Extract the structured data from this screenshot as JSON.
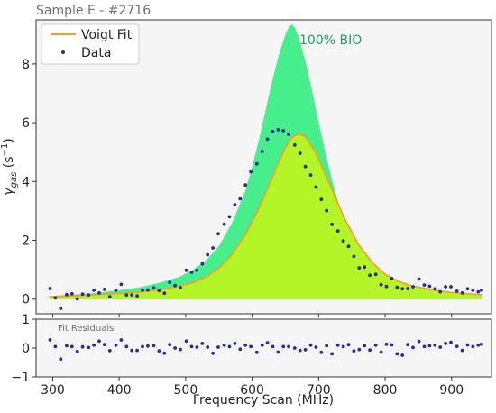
{
  "chart_data": {
    "type": "line",
    "title": "Sample E - #2716",
    "xlabel": "Frequency Scan (MHz)",
    "ylabel_main": "γ",
    "ylabel_sub": "gas",
    "ylabel_unit_open": " (s",
    "ylabel_unit_exp": "−1",
    "ylabel_unit_close": ")",
    "xlim": [
      275,
      960
    ],
    "main_ylim": [
      -0.5,
      9.5
    ],
    "resid_ylim": [
      -1,
      1
    ],
    "xticks": [
      300,
      400,
      500,
      600,
      700,
      800,
      900
    ],
    "main_yticks": [
      0,
      2,
      4,
      6,
      8
    ],
    "resid_yticks": [
      -1,
      0,
      1
    ],
    "grid": false,
    "legend_position": "top-left",
    "annotation": {
      "text": "100% BIO",
      "x": 668,
      "y": 9.0
    },
    "resid_label": "Fit Residuals",
    "colors": {
      "bio_fill": "#46ef8c",
      "fit_fill": "#b4f527",
      "fit_line": "#ff9a1a",
      "data": "#2a2a9a",
      "annotation": "#1fa060",
      "plot_bg": "#f5f5f5"
    },
    "series": [
      {
        "name": "Voigt Fit",
        "type": "line",
        "x": [
          295,
          330,
          360,
          400,
          430,
          460,
          490,
          510,
          530,
          550,
          570,
          590,
          605,
          620,
          635,
          650,
          660,
          670,
          680,
          695,
          710,
          725,
          740,
          760,
          780,
          800,
          820,
          840,
          870,
          900,
          945
        ],
        "y": [
          0.08,
          0.11,
          0.14,
          0.19,
          0.24,
          0.31,
          0.44,
          0.55,
          0.74,
          1.05,
          1.52,
          2.2,
          2.85,
          3.58,
          4.4,
          5.15,
          5.5,
          5.62,
          5.52,
          5.0,
          4.25,
          3.45,
          2.7,
          1.85,
          1.25,
          0.85,
          0.6,
          0.45,
          0.32,
          0.22,
          0.15
        ]
      },
      {
        "name": "Data",
        "type": "scatter",
        "x": [
          296,
          304,
          312,
          321,
          329,
          337,
          345,
          354,
          362,
          370,
          378,
          386,
          395,
          403,
          411,
          419,
          427,
          435,
          443,
          452,
          460,
          468,
          476,
          484,
          492,
          501,
          509,
          517,
          525,
          533,
          541,
          549,
          558,
          566,
          574,
          582,
          590,
          598,
          607,
          615,
          623,
          631,
          639,
          647,
          655,
          664,
          672,
          680,
          688,
          696,
          704,
          712,
          720,
          729,
          737,
          745,
          753,
          761,
          769,
          777,
          786,
          794,
          802,
          810,
          818,
          826,
          834,
          842,
          851,
          859,
          867,
          875,
          883,
          891,
          899,
          908,
          916,
          924,
          932,
          940,
          945
        ],
        "y": [
          0.36,
          0.04,
          -0.32,
          0.15,
          0.18,
          0.01,
          0.17,
          0.14,
          0.3,
          0.21,
          0.33,
          0.08,
          0.3,
          0.5,
          0.14,
          0.14,
          0.11,
          0.3,
          0.31,
          0.38,
          0.29,
          0.2,
          0.57,
          0.46,
          0.39,
          0.98,
          0.91,
          0.98,
          1.2,
          1.51,
          1.74,
          2.22,
          2.55,
          2.8,
          3.21,
          3.41,
          3.88,
          4.33,
          4.6,
          5.02,
          5.44,
          5.7,
          5.76,
          5.73,
          5.6,
          5.24,
          4.96,
          4.51,
          4.22,
          3.81,
          3.39,
          3.01,
          2.54,
          2.32,
          1.98,
          1.79,
          1.45,
          1.06,
          1.09,
          0.81,
          0.84,
          0.49,
          0.43,
          0.7,
          0.4,
          0.35,
          0.36,
          0.42,
          0.68,
          0.48,
          0.44,
          0.35,
          0.25,
          0.42,
          0.42,
          0.27,
          0.21,
          0.35,
          0.3,
          0.25,
          0.3
        ]
      },
      {
        "name": "100% BIO",
        "type": "area",
        "x": [
          295,
          330,
          360,
          400,
          430,
          460,
          490,
          510,
          530,
          550,
          570,
          590,
          600,
          610,
          620,
          630,
          640,
          650,
          655,
          660,
          665,
          670,
          680,
          690,
          700,
          710,
          720,
          730,
          740,
          750,
          760,
          770,
          780,
          800,
          820,
          840,
          870,
          900,
          945
        ],
        "y": [
          0.1,
          0.15,
          0.2,
          0.3,
          0.4,
          0.55,
          0.75,
          0.98,
          1.3,
          1.8,
          2.6,
          3.7,
          4.5,
          5.4,
          6.4,
          7.4,
          8.3,
          9.0,
          9.25,
          9.35,
          9.2,
          8.9,
          8.1,
          7.1,
          6.0,
          5.0,
          4.05,
          3.25,
          2.6,
          2.1,
          1.7,
          1.4,
          1.15,
          0.82,
          0.6,
          0.47,
          0.35,
          0.25,
          0.15
        ]
      },
      {
        "name": "Fit Residuals",
        "type": "scatter",
        "x": [
          296,
          304,
          312,
          321,
          329,
          337,
          345,
          354,
          362,
          370,
          378,
          386,
          395,
          403,
          411,
          419,
          427,
          435,
          443,
          452,
          460,
          468,
          476,
          484,
          492,
          501,
          509,
          517,
          525,
          533,
          541,
          549,
          558,
          566,
          574,
          582,
          590,
          598,
          607,
          615,
          623,
          631,
          639,
          647,
          655,
          664,
          672,
          680,
          688,
          696,
          704,
          712,
          720,
          729,
          737,
          745,
          753,
          761,
          769,
          777,
          786,
          794,
          802,
          810,
          818,
          826,
          834,
          842,
          851,
          859,
          867,
          875,
          883,
          891,
          899,
          908,
          916,
          924,
          932,
          940,
          945
        ],
        "y": [
          0.28,
          0.05,
          -0.38,
          0.08,
          0.05,
          -0.12,
          0.04,
          0.02,
          0.1,
          0.24,
          0.12,
          -0.09,
          0.1,
          0.28,
          0.05,
          -0.08,
          -0.08,
          0.05,
          0.07,
          0.08,
          -0.1,
          -0.18,
          0.12,
          0.0,
          -0.05,
          0.24,
          0.05,
          0.03,
          0.16,
          0.03,
          -0.18,
          0.03,
          0.1,
          0.05,
          0.16,
          -0.04,
          0.1,
          0.05,
          -0.15,
          0.1,
          0.18,
          0.05,
          -0.14,
          0.05,
          0.05,
          0.0,
          -0.08,
          -0.06,
          0.1,
          0.03,
          -0.15,
          0.08,
          -0.2,
          0.1,
          0.05,
          0.12,
          -0.1,
          -0.05,
          0.08,
          -0.07,
          0.1,
          -0.14,
          0.13,
          0.11,
          -0.2,
          -0.25,
          0.12,
          0.02,
          0.23,
          0.05,
          0.08,
          0.1,
          0.03,
          0.16,
          0.2,
          0.06,
          -0.08,
          0.11,
          0.05,
          0.1,
          0.13
        ]
      }
    ]
  }
}
